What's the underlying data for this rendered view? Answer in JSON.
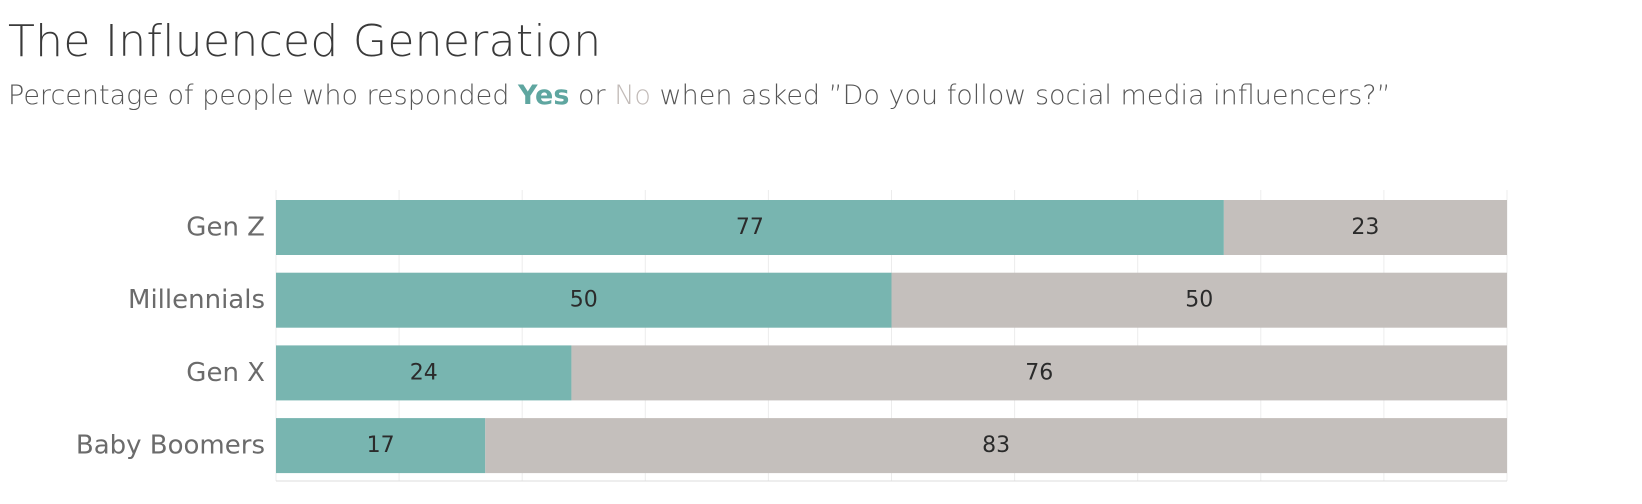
{
  "header": {
    "title": "The Influenced Generation",
    "subtitle_before": "Percentage of people who responded ",
    "subtitle_yes": "Yes",
    "subtitle_mid": " or ",
    "subtitle_no": "No",
    "subtitle_after": " when asked ”Do you follow social media influencers?”"
  },
  "colors": {
    "yes": "#78b5b0",
    "no": "#c4bfbc",
    "grid": "#ececec"
  },
  "chart_data": {
    "type": "bar",
    "orientation": "horizontal",
    "stacked": true,
    "categories": [
      "Gen Z",
      "Millennials",
      "Gen X",
      "Baby Boomers"
    ],
    "series": [
      {
        "name": "Yes",
        "values": [
          77,
          50,
          24,
          17
        ]
      },
      {
        "name": "No",
        "values": [
          23,
          50,
          76,
          83
        ]
      }
    ],
    "xlim": [
      0,
      100
    ],
    "grid": true,
    "legend": "embedded in subtitle"
  }
}
